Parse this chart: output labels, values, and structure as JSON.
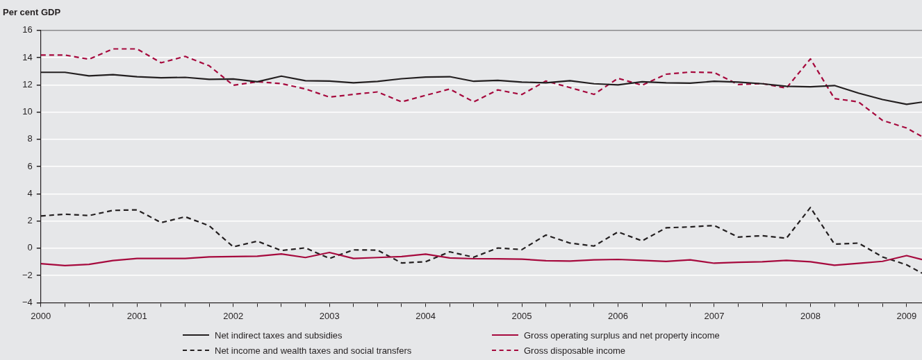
{
  "chart_data": {
    "type": "line",
    "ylabel": "Per cent GDP",
    "x": [
      2000,
      2000.25,
      2000.5,
      2000.75,
      2001,
      2001.25,
      2001.5,
      2001.75,
      2002,
      2002.25,
      2002.5,
      2002.75,
      2003,
      2003.25,
      2003.5,
      2003.75,
      2004,
      2004.25,
      2004.5,
      2004.75,
      2005,
      2005.25,
      2005.5,
      2005.75,
      2006,
      2006.25,
      2006.5,
      2006.75,
      2007,
      2007.25,
      2007.5,
      2007.75,
      2008,
      2008.25,
      2008.5,
      2008.75,
      2009,
      2009.16
    ],
    "series": [
      {
        "name": "Net indirect taxes and subsidies",
        "color": "#231f20",
        "line_style": "solid",
        "values": [
          12.92,
          12.92,
          12.66,
          12.75,
          12.6,
          12.52,
          12.55,
          12.4,
          12.43,
          12.23,
          12.64,
          12.3,
          12.28,
          12.15,
          12.25,
          12.45,
          12.57,
          12.6,
          12.26,
          12.33,
          12.2,
          12.15,
          12.3,
          12.08,
          12.0,
          12.23,
          12.15,
          12.12,
          12.26,
          12.2,
          12.08,
          11.9,
          11.86,
          11.95,
          11.39,
          10.92,
          10.57,
          10.73
        ]
      },
      {
        "name": "Gross operating surplus and net property income",
        "color": "#a6093d",
        "line_style": "solid",
        "values": [
          -1.13,
          -1.27,
          -1.18,
          -0.9,
          -0.75,
          -0.75,
          -0.75,
          -0.64,
          -0.61,
          -0.59,
          -0.42,
          -0.68,
          -0.31,
          -0.75,
          -0.68,
          -0.61,
          -0.43,
          -0.71,
          -0.77,
          -0.78,
          -0.8,
          -0.92,
          -0.94,
          -0.85,
          -0.82,
          -0.89,
          -0.97,
          -0.85,
          -1.1,
          -1.03,
          -0.99,
          -0.89,
          -0.99,
          -1.25,
          -1.11,
          -0.96,
          -0.54,
          -0.83
        ]
      },
      {
        "name": "Net income and wealth taxes and social transfers",
        "color": "#231f20",
        "line_style": "dashed",
        "values": [
          2.37,
          2.5,
          2.4,
          2.78,
          2.82,
          1.88,
          2.31,
          1.65,
          0.1,
          0.52,
          -0.17,
          0.03,
          -0.75,
          -0.12,
          -0.14,
          -1.08,
          -0.99,
          -0.26,
          -0.66,
          0.02,
          -0.1,
          0.97,
          0.38,
          0.16,
          1.2,
          0.54,
          1.5,
          1.57,
          1.67,
          0.82,
          0.92,
          0.73,
          2.99,
          0.3,
          0.38,
          -0.64,
          -1.22,
          -1.83
        ]
      },
      {
        "name": "Gross disposable income",
        "color": "#a6093d",
        "line_style": "dashed",
        "values": [
          14.19,
          14.19,
          13.88,
          14.64,
          14.64,
          13.62,
          14.09,
          13.4,
          11.97,
          12.23,
          12.09,
          11.7,
          11.1,
          11.3,
          11.48,
          10.75,
          11.23,
          11.69,
          10.75,
          11.63,
          11.29,
          12.28,
          11.8,
          11.3,
          12.48,
          11.97,
          12.78,
          12.94,
          12.9,
          12.02,
          12.09,
          11.76,
          13.91,
          10.99,
          10.75,
          9.39,
          8.83,
          8.2
        ]
      }
    ],
    "xlim": [
      2000,
      2009.16
    ],
    "xticks": [
      2000,
      {
        "value": 2000.25,
        "label": null
      },
      {
        "value": 2000.5,
        "label": null
      },
      {
        "value": 2000.75,
        "label": null
      },
      2001,
      {
        "value": 2001.25,
        "label": null
      },
      {
        "value": 2001.5,
        "label": null
      },
      {
        "value": 2001.75,
        "label": null
      },
      2002,
      {
        "value": 2002.25,
        "label": null
      },
      {
        "value": 2002.5,
        "label": null
      },
      {
        "value": 2002.75,
        "label": null
      },
      2003,
      {
        "value": 2003.25,
        "label": null
      },
      {
        "value": 2003.5,
        "label": null
      },
      {
        "value": 2003.75,
        "label": null
      },
      2004,
      {
        "value": 2004.25,
        "label": null
      },
      {
        "value": 2004.5,
        "label": null
      },
      {
        "value": 2004.75,
        "label": null
      },
      2005,
      {
        "value": 2005.25,
        "label": null
      },
      {
        "value": 2005.5,
        "label": null
      },
      {
        "value": 2005.75,
        "label": null
      },
      2006,
      {
        "value": 2006.25,
        "label": null
      },
      {
        "value": 2006.5,
        "label": null
      },
      {
        "value": 2006.75,
        "label": null
      },
      2007,
      {
        "value": 2007.25,
        "label": null
      },
      {
        "value": 2007.5,
        "label": null
      },
      {
        "value": 2007.75,
        "label": null
      },
      2008,
      {
        "value": 2008.25,
        "label": null
      },
      {
        "value": 2008.5,
        "label": null
      },
      {
        "value": 2008.75,
        "label": null
      },
      2009
    ],
    "ylim": [
      -4,
      16
    ],
    "yticks": [
      {
        "value": -4,
        "label": "−4"
      },
      {
        "value": -2,
        "label": "−2"
      },
      0,
      2,
      4,
      6,
      8,
      10,
      12,
      14,
      16
    ],
    "grid": "y",
    "legend": "bottom",
    "marker": "none"
  }
}
